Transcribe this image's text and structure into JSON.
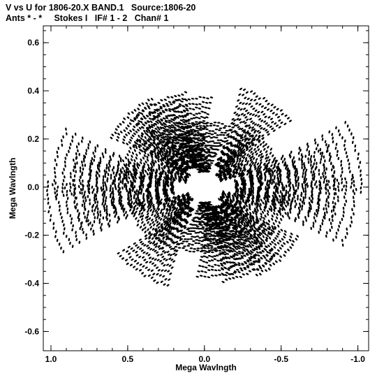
{
  "chart_data": {
    "type": "scatter",
    "title": "V vs U for 1806-20.X BAND.1   Source:1806-20",
    "subtitle": "Ants * - *     Stokes I   IF# 1 - 2   Chan# 1",
    "xlabel": "Mega Wavlngth",
    "ylabel": "Mega Wavlngth",
    "xlim": [
      1.05,
      -1.07
    ],
    "ylim": [
      -0.68,
      0.67
    ],
    "x_reversed": true,
    "xticks": [
      1.0,
      0.5,
      0.0,
      -0.5,
      -1.0
    ],
    "xtick_labels": [
      "1.0",
      "0.5",
      "0.0",
      "-0.5",
      "-1.0"
    ],
    "yticks": [
      0.6,
      0.4,
      0.2,
      0.0,
      -0.2,
      -0.4,
      -0.6
    ],
    "ytick_labels": [
      "0.6",
      "0.4",
      "0.2",
      "0.0",
      "-0.2",
      "-0.4",
      "-0.6"
    ],
    "grid": false,
    "marker_color": "#000000",
    "tracks": [
      {
        "length": 0.62,
        "angle": 75,
        "spread": 0.22
      },
      {
        "length": 0.66,
        "angle": 62,
        "spread": 0.2
      },
      {
        "length": 0.98,
        "angle": 10,
        "spread": 0.16
      },
      {
        "length": 1.02,
        "angle": -12,
        "spread": 0.16
      },
      {
        "length": 0.55,
        "angle": 28,
        "spread": 0.25
      },
      {
        "length": 0.5,
        "angle": -35,
        "spread": 0.25
      },
      {
        "length": 0.7,
        "angle": 45,
        "spread": 0.18
      },
      {
        "length": 0.72,
        "angle": -55,
        "spread": 0.18
      },
      {
        "length": 0.45,
        "angle": 88,
        "spread": 0.3
      },
      {
        "length": 0.85,
        "angle": -2,
        "spread": 0.2
      }
    ]
  }
}
